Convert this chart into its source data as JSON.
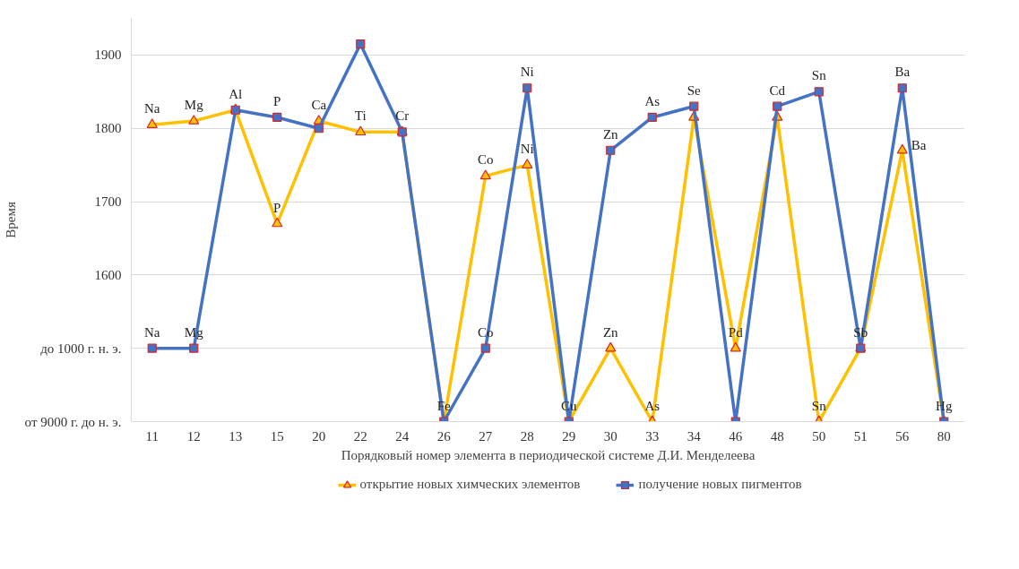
{
  "chart_data": {
    "type": "line",
    "xlabel": "Порядковый номер элемента в периодической системе Д.И. Менделеева",
    "ylabel": "Время",
    "categories": [
      "11",
      "12",
      "13",
      "15",
      "20",
      "22",
      "24",
      "26",
      "27",
      "28",
      "29",
      "30",
      "33",
      "34",
      "46",
      "48",
      "50",
      "51",
      "56",
      "80"
    ],
    "ylim": [
      1400,
      1950
    ],
    "yticks": [
      {
        "value": 1400,
        "label": "от 9000 г. до н. э."
      },
      {
        "value": 1500,
        "label": "до 1000 г. н. э."
      },
      1600,
      1700,
      1800,
      1900
    ],
    "grid": "y",
    "legend": "bottom",
    "line_style": "solid",
    "series": [
      {
        "name": "открытие новых химческих элементов",
        "color": "#ffc000",
        "marker": "triangle",
        "values": [
          1805,
          1810,
          1825,
          1670,
          1810,
          1795,
          1795,
          1400,
          1735,
          1750,
          1400,
          1500,
          1400,
          1815,
          1500,
          1815,
          1400,
          1500,
          1770,
          1400
        ],
        "value_labels": [
          "Na",
          "Mg",
          null,
          "P",
          "Ca",
          "Ti",
          null,
          null,
          "Co",
          "Ni",
          null,
          "Zn",
          "As",
          null,
          "Pd",
          null,
          "Sn",
          null,
          "Ba",
          null
        ]
      },
      {
        "name": "получение новых пигментов",
        "color": "#4472c4",
        "marker": "square",
        "values": [
          1500,
          1500,
          1825,
          1815,
          1800,
          1915,
          1795,
          1400,
          1500,
          1855,
          1400,
          1770,
          1815,
          1830,
          1400,
          1830,
          1850,
          1500,
          1855,
          1400
        ],
        "value_labels": [
          "Na",
          "Mg",
          "Al",
          "P",
          null,
          null,
          "Cr",
          "Fe",
          "Co",
          "Ni",
          "Cu",
          "Zn",
          "As",
          "Se",
          null,
          "Cd",
          "Sn",
          "Sb",
          "Ba",
          "Hg"
        ]
      }
    ]
  }
}
